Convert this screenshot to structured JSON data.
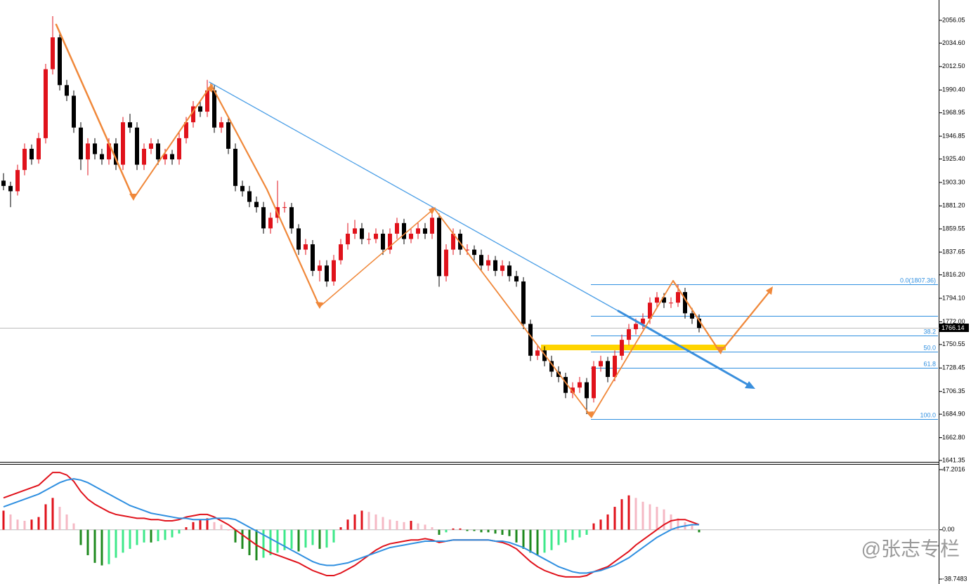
{
  "chart_data": [
    {
      "type": "candlestick",
      "candles": [
        [
          1905,
          1912,
          1896,
          1900
        ],
        [
          1900,
          1904,
          1880,
          1895
        ],
        [
          1895,
          1920,
          1891,
          1915
        ],
        [
          1915,
          1940,
          1910,
          1935
        ],
        [
          1935,
          1939,
          1920,
          1925
        ],
        [
          1925,
          1950,
          1921,
          1945
        ],
        [
          1945,
          2015,
          1940,
          2010
        ],
        [
          2010,
          2060,
          2005,
          2040
        ],
        [
          2040,
          2045,
          1990,
          1995
        ],
        [
          1995,
          2000,
          1980,
          1985
        ],
        [
          1985,
          1990,
          1950,
          1955
        ],
        [
          1955,
          1960,
          1915,
          1925
        ],
        [
          1925,
          1945,
          1910,
          1940
        ],
        [
          1940,
          1945,
          1925,
          1930
        ],
        [
          1930,
          1935,
          1920,
          1925
        ],
        [
          1925,
          1945,
          1920,
          1940
        ],
        [
          1940,
          1945,
          1915,
          1920
        ],
        [
          1920,
          1965,
          1915,
          1960
        ],
        [
          1960,
          1968,
          1950,
          1955
        ],
        [
          1955,
          1960,
          1915,
          1920
        ],
        [
          1920,
          1940,
          1915,
          1935
        ],
        [
          1935,
          1945,
          1930,
          1940
        ],
        [
          1940,
          1944,
          1920,
          1925
        ],
        [
          1925,
          1935,
          1920,
          1930
        ],
        [
          1930,
          1934,
          1920,
          1925
        ],
        [
          1925,
          1950,
          1920,
          1945
        ],
        [
          1945,
          1965,
          1940,
          1960
        ],
        [
          1960,
          1980,
          1955,
          1975
        ],
        [
          1975,
          1980,
          1965,
          1970
        ],
        [
          1970,
          2000,
          1965,
          1990
        ],
        [
          1990,
          1995,
          1950,
          1955
        ],
        [
          1955,
          1965,
          1950,
          1960
        ],
        [
          1960,
          1964,
          1930,
          1935
        ],
        [
          1935,
          1940,
          1895,
          1900
        ],
        [
          1900,
          1905,
          1890,
          1895
        ],
        [
          1895,
          1900,
          1880,
          1885
        ],
        [
          1885,
          1890,
          1875,
          1880
        ],
        [
          1880,
          1885,
          1855,
          1860
        ],
        [
          1860,
          1875,
          1855,
          1870
        ],
        [
          1870,
          1905,
          1865,
          1880
        ],
        [
          1880,
          1885,
          1875,
          1880
        ],
        [
          1880,
          1884,
          1855,
          1860
        ],
        [
          1860,
          1864,
          1835,
          1840
        ],
        [
          1840,
          1850,
          1835,
          1845
        ],
        [
          1845,
          1849,
          1815,
          1820
        ],
        [
          1820,
          1830,
          1810,
          1825
        ],
        [
          1825,
          1830,
          1805,
          1810
        ],
        [
          1810,
          1835,
          1806,
          1830
        ],
        [
          1830,
          1850,
          1826,
          1845
        ],
        [
          1845,
          1865,
          1840,
          1855
        ],
        [
          1855,
          1868,
          1850,
          1860
        ],
        [
          1860,
          1865,
          1845,
          1850
        ],
        [
          1850,
          1856,
          1845,
          1850
        ],
        [
          1850,
          1860,
          1846,
          1855
        ],
        [
          1855,
          1859,
          1835,
          1840
        ],
        [
          1840,
          1860,
          1836,
          1855
        ],
        [
          1855,
          1870,
          1850,
          1865
        ],
        [
          1865,
          1869,
          1845,
          1850
        ],
        [
          1850,
          1860,
          1846,
          1855
        ],
        [
          1855,
          1865,
          1850,
          1860
        ],
        [
          1860,
          1865,
          1850,
          1855
        ],
        [
          1855,
          1880,
          1850,
          1870
        ],
        [
          1870,
          1874,
          1805,
          1815
        ],
        [
          1815,
          1845,
          1810,
          1840
        ],
        [
          1840,
          1860,
          1835,
          1855
        ],
        [
          1855,
          1859,
          1835,
          1840
        ],
        [
          1840,
          1845,
          1835,
          1840
        ],
        [
          1840,
          1844,
          1830,
          1835
        ],
        [
          1835,
          1840,
          1820,
          1825
        ],
        [
          1825,
          1835,
          1820,
          1830
        ],
        [
          1830,
          1834,
          1815,
          1820
        ],
        [
          1820,
          1830,
          1815,
          1825
        ],
        [
          1825,
          1829,
          1810,
          1815
        ],
        [
          1815,
          1820,
          1805,
          1810
        ],
        [
          1810,
          1814,
          1765,
          1770
        ],
        [
          1770,
          1774,
          1735,
          1740
        ],
        [
          1740,
          1750,
          1736,
          1745
        ],
        [
          1745,
          1749,
          1730,
          1735
        ],
        [
          1735,
          1740,
          1720,
          1725
        ],
        [
          1725,
          1730,
          1715,
          1720
        ],
        [
          1720,
          1724,
          1700,
          1705
        ],
        [
          1705,
          1715,
          1700,
          1710
        ],
        [
          1710,
          1720,
          1705,
          1715
        ],
        [
          1715,
          1719,
          1685,
          1700
        ],
        [
          1700,
          1735,
          1696,
          1730
        ],
        [
          1730,
          1740,
          1725,
          1735
        ],
        [
          1735,
          1739,
          1715,
          1720
        ],
        [
          1720,
          1745,
          1716,
          1740
        ],
        [
          1740,
          1760,
          1736,
          1755
        ],
        [
          1755,
          1770,
          1750,
          1765
        ],
        [
          1765,
          1775,
          1760,
          1770
        ],
        [
          1770,
          1780,
          1765,
          1775
        ],
        [
          1775,
          1795,
          1770,
          1790
        ],
        [
          1790,
          1800,
          1785,
          1795
        ],
        [
          1795,
          1799,
          1785,
          1790
        ],
        [
          1790,
          1795,
          1785,
          1790
        ],
        [
          1790,
          1807,
          1786,
          1800
        ],
        [
          1800,
          1804,
          1775,
          1780
        ],
        [
          1780,
          1785,
          1770,
          1775
        ],
        [
          1775,
          1779,
          1762,
          1766.14
        ]
      ],
      "up_color": "#e0121b",
      "down_color": "#000000",
      "ylim": [
        1640.0,
        2075.2
      ],
      "yticks": [
        2056.05,
        {
          "value": 2034.6,
          "label": "2034.60"
        },
        {
          "value": 2012.5,
          "label": "2012.50"
        },
        {
          "value": 1990.4,
          "label": "1990.40"
        },
        1968.95,
        1946.85,
        {
          "value": 1925.4,
          "label": "1925.40"
        },
        {
          "value": 1903.3,
          "label": "1903.30"
        },
        {
          "value": 1881.2,
          "label": "1881.20"
        },
        1859.55,
        1837.65,
        {
          "value": 1816.2,
          "label": "1816.20"
        },
        {
          "value": 1794.1,
          "label": "1794.10"
        },
        {
          "value": 1772,
          "label": "1772.00"
        },
        1750.55,
        1728.45,
        1706.35,
        {
          "value": 1684.9,
          "label": "1684.90"
        },
        {
          "value": 1662.8,
          "label": "1662.80"
        },
        1641.35
      ],
      "annotations": [
        "0.0(1807.36)",
        "38.2",
        "50.0",
        "61.8",
        "100.0"
      ],
      "watermark": "@张志专栏"
    },
    {
      "type": "macd",
      "histogram": [
        15,
        12,
        8,
        7,
        8,
        10,
        20,
        25,
        18,
        12,
        5,
        -12,
        -20,
        -26,
        -28,
        -27,
        -22,
        -18,
        -15,
        -12,
        -10,
        -10,
        -9,
        -8,
        -6,
        -3,
        2,
        6,
        8,
        9,
        6,
        4,
        0,
        -10,
        -15,
        -20,
        -24,
        -22,
        -20,
        -18,
        -16,
        -15,
        -17,
        -14,
        -12,
        -15,
        -14,
        -10,
        2,
        8,
        12,
        15,
        14,
        12,
        10,
        8,
        7,
        6,
        7,
        5,
        4,
        2,
        -4,
        -2,
        1,
        1,
        -1,
        -1,
        -2,
        -2,
        -3,
        -4,
        -5,
        -10,
        -15,
        -18,
        -20,
        -18,
        -16,
        -12,
        -10,
        -8,
        -6,
        -4,
        5,
        8,
        12,
        18,
        24,
        27,
        25,
        22,
        20,
        18,
        16,
        12,
        9,
        6,
        4,
        -2
      ],
      "series": [
        {
          "color": "#e0121b",
          "values": [
            25,
            27,
            29,
            31,
            33,
            35,
            40,
            45,
            45,
            43,
            38,
            30,
            24,
            20,
            17,
            14,
            12,
            11,
            10,
            9,
            9,
            8,
            8,
            7,
            7,
            8,
            10,
            11,
            12,
            12,
            10,
            7,
            4,
            0,
            -4,
            -8,
            -12,
            -15,
            -18,
            -20,
            -22,
            -24,
            -26,
            -29,
            -32,
            -34,
            -36,
            -36,
            -34,
            -31,
            -28,
            -24,
            -20,
            -16,
            -13,
            -11,
            -10,
            -9,
            -8,
            -8,
            -7,
            -8,
            -10,
            -9,
            -8,
            -8,
            -8,
            -8,
            -8,
            -8,
            -9,
            -10,
            -12,
            -15,
            -20,
            -25,
            -29,
            -32,
            -34,
            -36,
            -37,
            -37,
            -37,
            -36,
            -33,
            -31,
            -29,
            -25,
            -21,
            -17,
            -12,
            -8,
            -4,
            0,
            4,
            7,
            8,
            8,
            6,
            4
          ]
        },
        {
          "color": "#2f8fe0",
          "values": [
            18,
            20,
            22,
            24,
            26,
            28,
            31,
            34,
            37,
            39,
            40,
            39,
            37,
            34,
            31,
            28,
            25,
            22,
            19,
            17,
            15,
            13,
            12,
            11,
            10,
            9,
            9,
            8,
            8,
            8,
            9,
            9,
            9,
            8,
            5,
            2,
            -1,
            -4,
            -7,
            -10,
            -13,
            -16,
            -19,
            -22,
            -25,
            -27,
            -28,
            -28,
            -27,
            -26,
            -24,
            -22,
            -20,
            -18,
            -16,
            -14,
            -13,
            -12,
            -11,
            -10,
            -9,
            -9,
            -9,
            -9,
            -8,
            -8,
            -8,
            -8,
            -8,
            -8,
            -9,
            -9,
            -10,
            -12,
            -14,
            -17,
            -20,
            -23,
            -26,
            -29,
            -31,
            -33,
            -34,
            -34,
            -33,
            -32,
            -30,
            -28,
            -25,
            -22,
            -18,
            -14,
            -10,
            -6,
            -3,
            0,
            2,
            3,
            4,
            4
          ]
        }
      ],
      "ylim": [
        -41.5,
        51.1
      ],
      "yticks": [
        47.2016,
        {
          "value": 0,
          "label": "0.00"
        },
        -38.7483
      ]
    }
  ]
}
